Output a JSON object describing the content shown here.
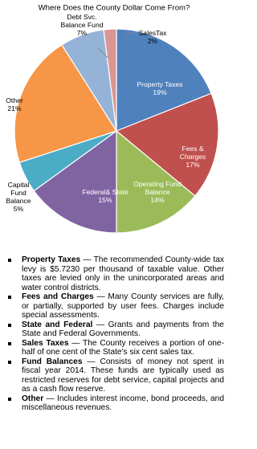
{
  "chart_data": {
    "type": "pie",
    "title": "Where Does the County Dollar Come From?",
    "categories": [
      "Property Taxes",
      "Fees & Charges",
      "Operating Fund Balance",
      "Federal& State",
      "Capital Fund Balance",
      "Other",
      "Debt Svc. Balance Fund",
      "SalesTax"
    ],
    "values": [
      19,
      17,
      14,
      15,
      5,
      21,
      7,
      2
    ],
    "value_labels": [
      "19%",
      "17%",
      "14%",
      "15%",
      "5%",
      "21%",
      "7%",
      "2%"
    ],
    "colors": [
      "#4f81bd",
      "#c0504d",
      "#9bbb59",
      "#8064a2",
      "#4bacc6",
      "#f79646",
      "#95b3d7",
      "#d99694"
    ]
  },
  "notes": [
    {
      "term": "Property Taxes",
      "text": "— The recommended County-wide tax levy is $5.7230 per thousand of taxable value. Other taxes are levied only in the unincorporated areas and water control districts."
    },
    {
      "term": "Fees and Charges",
      "text": "— Many County services are fully, or partially, supported by user fees. Charges include special assessments."
    },
    {
      "term": "State and Federal",
      "text": "— Grants and payments from the State and Federal Governments."
    },
    {
      "term": "Sales Taxes",
      "text": "— The County receives a portion of one-half of one cent of the State's six cent sales tax."
    },
    {
      "term": "Fund Balances",
      "text": "— Consists of money not spent in fiscal year 2014. These funds are typically used as restricted reserves for debt service, capital projects and as a cash flow reserve."
    },
    {
      "term": "Other",
      "text": "— Includes interest income, bond proceeds, and miscellaneous revenues."
    }
  ]
}
